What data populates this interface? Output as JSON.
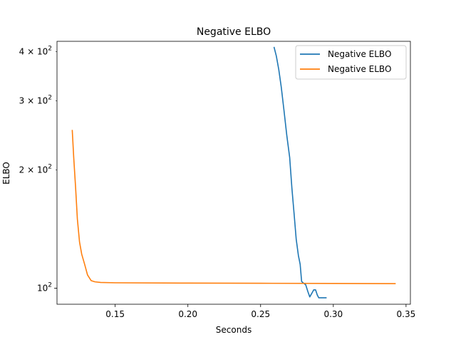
{
  "chart_data": {
    "type": "line",
    "title": "Negative ELBO",
    "xlabel": "Seconds",
    "ylabel": "ELBO",
    "xlim": [
      0.11,
      0.353
    ],
    "ylim": [
      91,
      425
    ],
    "yscale": "log",
    "grid": false,
    "legend_position": "top-right",
    "x_ticks": [
      {
        "value": 0.15,
        "label": "0.15"
      },
      {
        "value": 0.2,
        "label": "0.20"
      },
      {
        "value": 0.25,
        "label": "0.25"
      },
      {
        "value": 0.3,
        "label": "0.30"
      },
      {
        "value": 0.35,
        "label": "0.35"
      }
    ],
    "y_ticks": [
      {
        "value": 100,
        "base": "10",
        "exp": "2",
        "mult": ""
      },
      {
        "value": 200,
        "base": "10",
        "exp": "2",
        "mult": "2 × "
      },
      {
        "value": 300,
        "base": "10",
        "exp": "2",
        "mult": "3 × "
      },
      {
        "value": 400,
        "base": "10",
        "exp": "2",
        "mult": "4 × "
      }
    ],
    "series": [
      {
        "name": "Negative ELBO",
        "color": "#1f77b4",
        "points": [
          [
            0.2593,
            410
          ],
          [
            0.2608,
            390
          ],
          [
            0.2625,
            360
          ],
          [
            0.2642,
            325
          ],
          [
            0.266,
            285
          ],
          [
            0.268,
            245
          ],
          [
            0.27,
            215
          ],
          [
            0.2715,
            180
          ],
          [
            0.273,
            155
          ],
          [
            0.2745,
            133
          ],
          [
            0.276,
            121
          ],
          [
            0.2772,
            115
          ],
          [
            0.2782,
            104
          ],
          [
            0.2795,
            103
          ],
          [
            0.281,
            102
          ],
          [
            0.2825,
            98
          ],
          [
            0.2838,
            95
          ],
          [
            0.2852,
            97
          ],
          [
            0.2865,
            99
          ],
          [
            0.2878,
            99
          ],
          [
            0.289,
            96
          ],
          [
            0.29,
            94.5
          ],
          [
            0.292,
            94.5
          ],
          [
            0.295,
            94.5
          ]
        ]
      },
      {
        "name": "Negative ELBO",
        "color": "#ff7f0e",
        "points": [
          [
            0.1205,
            252
          ],
          [
            0.1215,
            215
          ],
          [
            0.1228,
            180
          ],
          [
            0.124,
            150
          ],
          [
            0.1255,
            131
          ],
          [
            0.127,
            122
          ],
          [
            0.129,
            115
          ],
          [
            0.131,
            108
          ],
          [
            0.1335,
            104.5
          ],
          [
            0.136,
            103.8
          ],
          [
            0.14,
            103.4
          ],
          [
            0.15,
            103.2
          ],
          [
            0.2,
            103.0
          ],
          [
            0.25,
            102.9
          ],
          [
            0.3,
            102.8
          ],
          [
            0.3425,
            102.7
          ]
        ]
      }
    ]
  }
}
